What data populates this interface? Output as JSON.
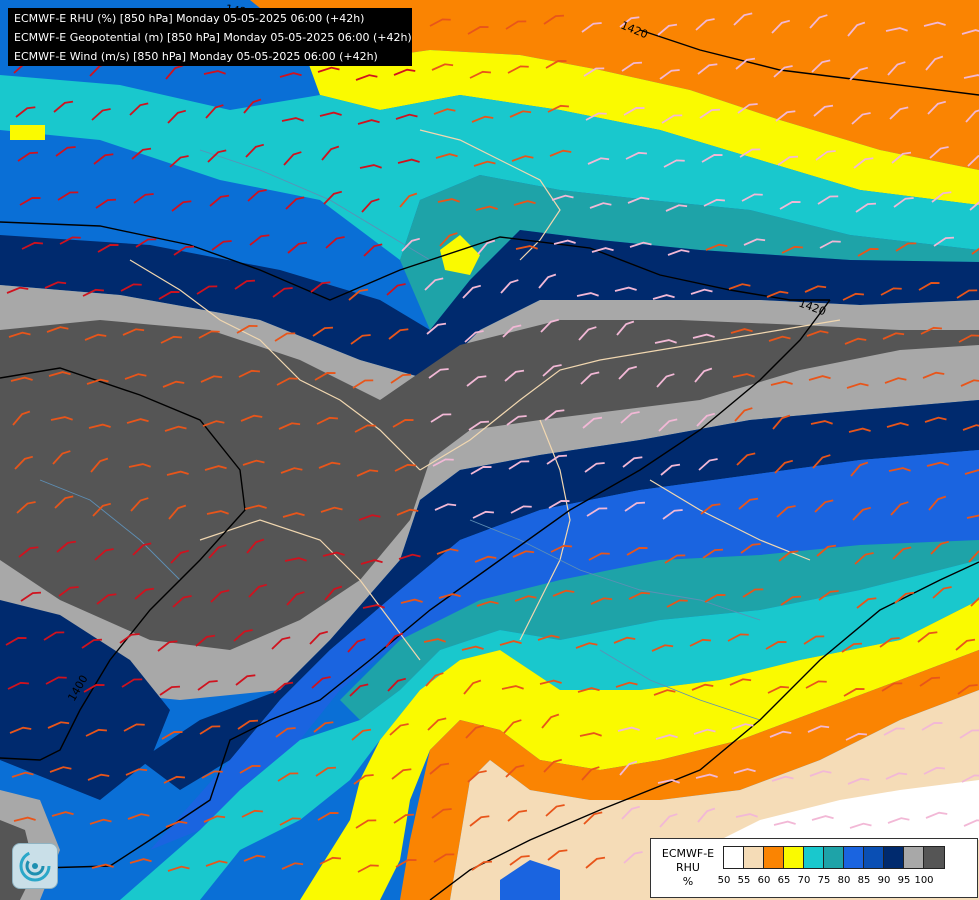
{
  "header": {
    "line1": "ECMWF-E RHU (%) [850 hPa] Monday 05-05-2025 06:00 (+42h)",
    "line2": "ECMWF-E Geopotential (m) [850 hPa] Monday 05-05-2025 06:00 (+42h)",
    "line3": "ECMWF-E Wind (m/s) [850 hPa] Monday 05-05-2025 06:00 (+42h)"
  },
  "contour_labels": [
    "1420",
    "1420",
    "1420",
    "1400"
  ],
  "legend": {
    "title_line1": "ECMWF-E",
    "title_line2": "RHU",
    "unit": "%",
    "ticks": [
      "50",
      "55",
      "60",
      "65",
      "70",
      "75",
      "80",
      "85",
      "90",
      "95",
      "100"
    ],
    "colors": [
      "#ffffff",
      "#f5dcb7",
      "#fa8402",
      "#fafa00",
      "#19c8cd",
      "#1ea3a8",
      "#1a64e0",
      "#0a4fb4",
      "#002a6e",
      "#a8a8a8",
      "#555555"
    ]
  },
  "logo": {
    "icon": "swirl-logo-icon"
  }
}
